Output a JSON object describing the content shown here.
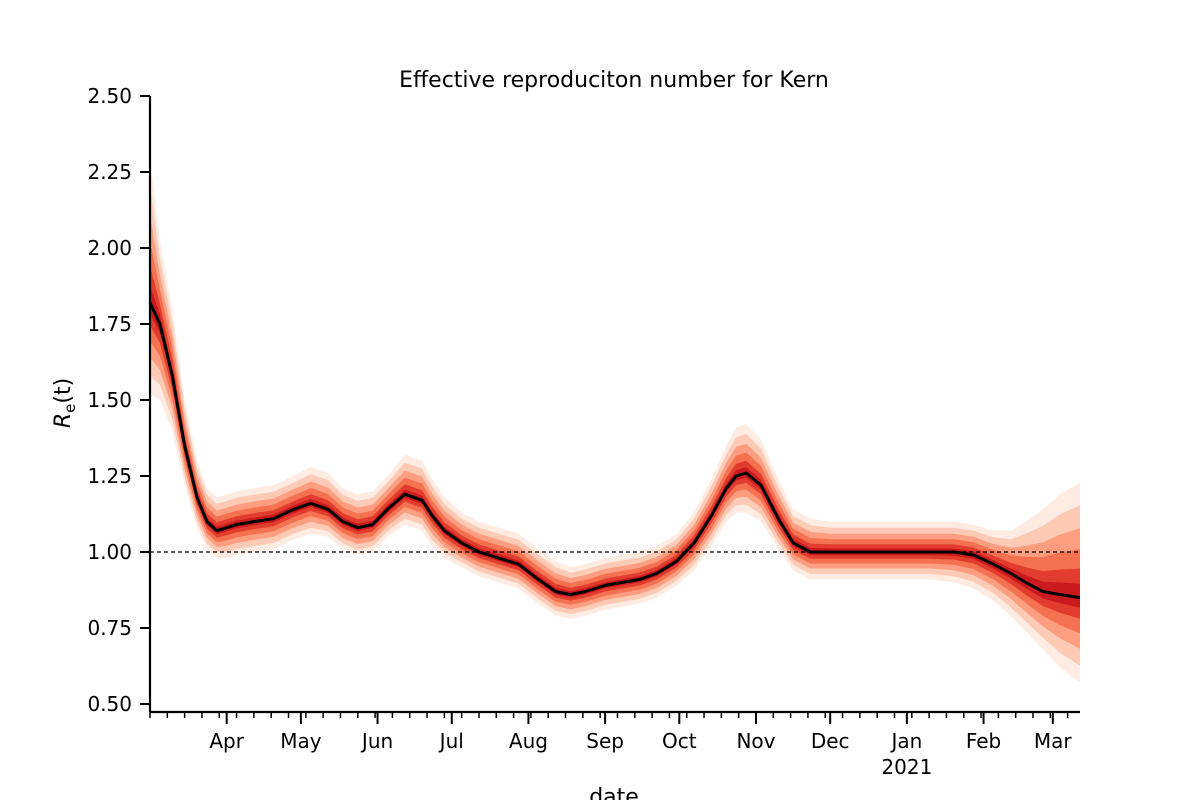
{
  "chart_data": {
    "type": "area",
    "title": "Effective reproduciton number for Kern",
    "xlabel": "date",
    "ylabel": {
      "symbol": "R",
      "subscript": "e",
      "suffix": "(t)"
    },
    "ylim": [
      0.5,
      2.5
    ],
    "xlim": [
      "2020-03-01",
      "2021-03-12"
    ],
    "grid": false,
    "reference_line": {
      "y": 1.0,
      "style": "dashed"
    },
    "colors": {
      "median": "#000000",
      "band_light": "#fde0d2",
      "band_mid": "#f26a4a",
      "band_dark": "#c9181d",
      "reference": "#000000"
    },
    "y_ticks": [
      "0.50",
      "0.75",
      "1.00",
      "1.25",
      "1.50",
      "1.75",
      "2.00",
      "2.25",
      "2.50"
    ],
    "x_month_ticks": [
      {
        "date": "2020-04-01",
        "label": "Apr"
      },
      {
        "date": "2020-05-01",
        "label": "May"
      },
      {
        "date": "2020-06-01",
        "label": "Jun"
      },
      {
        "date": "2020-07-01",
        "label": "Jul"
      },
      {
        "date": "2020-08-01",
        "label": "Aug"
      },
      {
        "date": "2020-09-01",
        "label": "Sep"
      },
      {
        "date": "2020-10-01",
        "label": "Oct"
      },
      {
        "date": "2020-11-01",
        "label": "Nov"
      },
      {
        "date": "2020-12-01",
        "label": "Dec"
      },
      {
        "date": "2021-01-01",
        "label": "Jan"
      },
      {
        "date": "2021-02-01",
        "label": "Feb"
      },
      {
        "date": "2021-03-01",
        "label": "Mar"
      }
    ],
    "x_year_label": {
      "date": "2021-01-01",
      "label": "2021"
    },
    "series": [
      {
        "x": [
          "2020-03-01",
          "2020-03-05",
          "2020-03-10",
          "2020-03-15",
          "2020-03-20",
          "2020-03-24",
          "2020-03-28",
          "2020-04-01",
          "2020-04-05",
          "2020-04-12",
          "2020-04-20",
          "2020-04-28",
          "2020-05-05",
          "2020-05-12",
          "2020-05-18",
          "2020-05-24",
          "2020-05-30",
          "2020-06-05",
          "2020-06-12",
          "2020-06-19",
          "2020-06-23",
          "2020-06-28",
          "2020-07-05",
          "2020-07-12",
          "2020-07-20",
          "2020-07-28",
          "2020-08-05",
          "2020-08-12",
          "2020-08-18",
          "2020-08-24",
          "2020-09-01",
          "2020-09-08",
          "2020-09-15",
          "2020-09-22",
          "2020-09-30",
          "2020-10-07",
          "2020-10-14",
          "2020-10-20",
          "2020-10-24",
          "2020-10-28",
          "2020-11-03",
          "2020-11-10",
          "2020-11-16",
          "2020-11-23",
          "2020-12-01",
          "2020-12-10",
          "2020-12-20",
          "2020-12-31",
          "2021-01-10",
          "2021-01-20",
          "2021-01-28",
          "2021-02-05",
          "2021-02-12",
          "2021-02-18",
          "2021-02-25",
          "2021-03-04",
          "2021-03-12"
        ],
        "median": [
          1.82,
          1.75,
          1.58,
          1.35,
          1.18,
          1.1,
          1.07,
          1.08,
          1.09,
          1.1,
          1.11,
          1.14,
          1.16,
          1.14,
          1.1,
          1.08,
          1.09,
          1.14,
          1.19,
          1.17,
          1.12,
          1.07,
          1.03,
          1.0,
          0.98,
          0.96,
          0.91,
          0.87,
          0.86,
          0.87,
          0.89,
          0.9,
          0.91,
          0.93,
          0.97,
          1.03,
          1.12,
          1.21,
          1.25,
          1.26,
          1.22,
          1.11,
          1.03,
          1.0,
          1.0,
          1.0,
          1.0,
          1.0,
          1.0,
          1.0,
          0.99,
          0.96,
          0.93,
          0.9,
          0.87,
          0.86,
          0.85
        ],
        "lower": [
          1.52,
          1.5,
          1.4,
          1.22,
          1.08,
          1.01,
          0.98,
          0.98,
          0.99,
          1.0,
          1.01,
          1.04,
          1.06,
          1.05,
          1.01,
          0.99,
          1.0,
          1.05,
          1.09,
          1.07,
          1.02,
          0.98,
          0.95,
          0.92,
          0.9,
          0.88,
          0.83,
          0.79,
          0.78,
          0.79,
          0.81,
          0.82,
          0.83,
          0.85,
          0.89,
          0.94,
          1.02,
          1.1,
          1.13,
          1.13,
          1.1,
          1.01,
          0.94,
          0.91,
          0.91,
          0.91,
          0.91,
          0.91,
          0.91,
          0.9,
          0.88,
          0.84,
          0.79,
          0.74,
          0.68,
          0.62,
          0.57
        ],
        "upper": [
          2.3,
          2.02,
          1.8,
          1.5,
          1.3,
          1.21,
          1.18,
          1.19,
          1.2,
          1.21,
          1.22,
          1.25,
          1.28,
          1.26,
          1.21,
          1.19,
          1.2,
          1.25,
          1.32,
          1.3,
          1.24,
          1.18,
          1.13,
          1.1,
          1.08,
          1.06,
          1.01,
          0.97,
          0.95,
          0.96,
          0.98,
          0.99,
          1.0,
          1.02,
          1.06,
          1.13,
          1.24,
          1.35,
          1.41,
          1.42,
          1.37,
          1.24,
          1.14,
          1.11,
          1.1,
          1.1,
          1.1,
          1.1,
          1.1,
          1.1,
          1.09,
          1.07,
          1.07,
          1.1,
          1.14,
          1.19,
          1.23
        ]
      }
    ]
  }
}
